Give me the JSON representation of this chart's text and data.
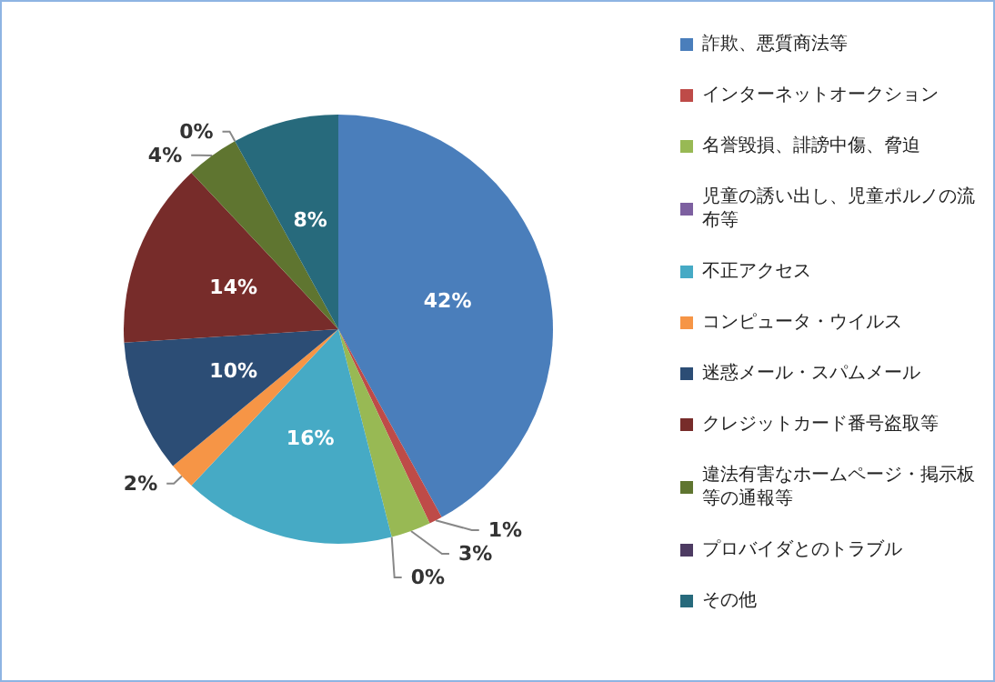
{
  "chart_data": {
    "type": "pie",
    "categories": [
      "詐欺、悪質商法等",
      "インターネットオークション",
      "名誉毀損、誹謗中傷、脅迫",
      "児童の誘い出し、児童ポルノの流布等",
      "不正アクセス",
      "コンピュータ・ウイルス",
      "迷惑メール・スパムメール",
      "クレジットカード番号盗取等",
      "違法有害なホームページ・掲示板等の通報等",
      "プロバイダとのトラブル",
      "その他"
    ],
    "values": [
      42,
      1,
      3,
      0,
      16,
      2,
      10,
      14,
      4,
      0,
      8
    ],
    "value_labels": [
      "42%",
      "1%",
      "3%",
      "0%",
      "16%",
      "2%",
      "10%",
      "14%",
      "4%",
      "0%",
      "8%"
    ],
    "colors": [
      "#4a7ebb",
      "#be4b48",
      "#98b954",
      "#7d60a0",
      "#46aac5",
      "#f69546",
      "#2c4d75",
      "#772c2a",
      "#5f7530",
      "#4d3b62",
      "#276a7c"
    ],
    "legend": "right"
  }
}
